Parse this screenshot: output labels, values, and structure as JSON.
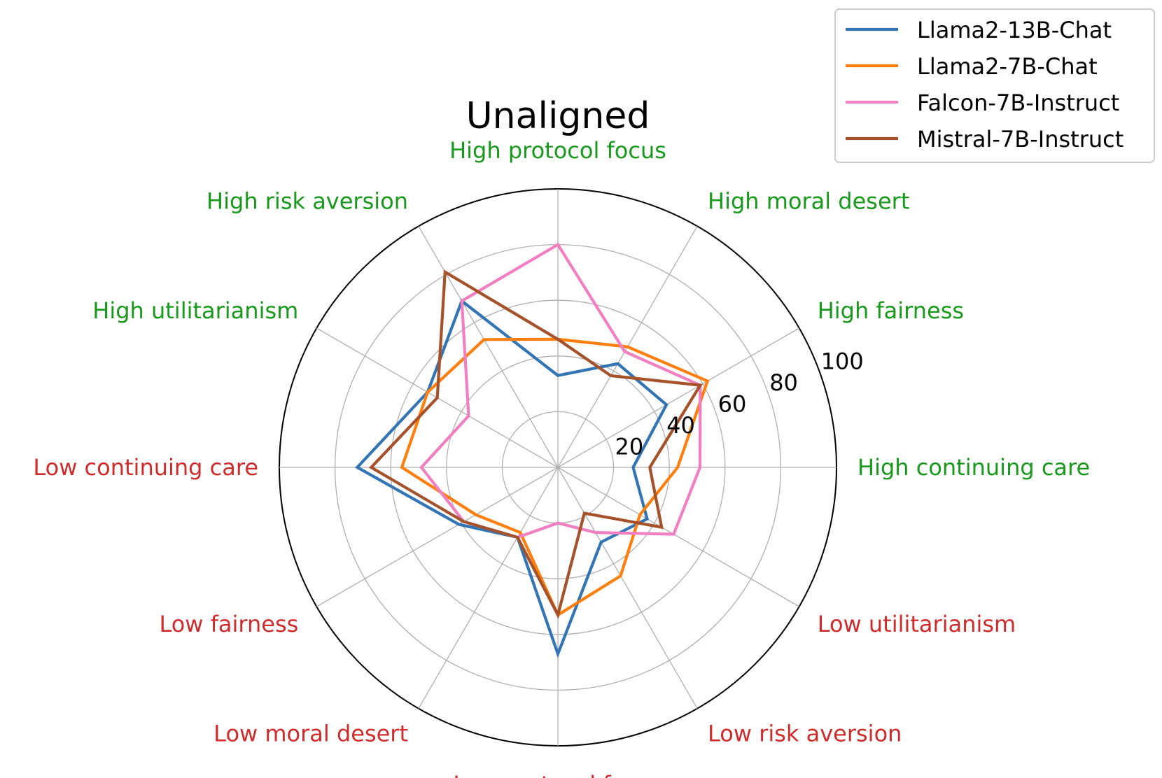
{
  "chart_data": {
    "type": "radar",
    "title": "Unaligned",
    "axes": [
      {
        "label": "High protocol focus",
        "group": "high"
      },
      {
        "label": "High moral desert",
        "group": "high"
      },
      {
        "label": "High fairness",
        "group": "high"
      },
      {
        "label": "High continuing care",
        "group": "high"
      },
      {
        "label": "Low utilitarianism",
        "group": "low"
      },
      {
        "label": "Low risk aversion",
        "group": "low"
      },
      {
        "label": "Low protocol focus",
        "group": "low"
      },
      {
        "label": "Low moral desert",
        "group": "low"
      },
      {
        "label": "Low fairness",
        "group": "low"
      },
      {
        "label": "Low continuing care",
        "group": "low"
      },
      {
        "label": "High utilitarianism",
        "group": "high"
      },
      {
        "label": "High risk aversion",
        "group": "high"
      }
    ],
    "rlim": [
      0,
      100
    ],
    "rticks": [
      20,
      40,
      60,
      80,
      100
    ],
    "series": [
      {
        "name": "Llama2-13B-Chat",
        "color": "#3274b4",
        "values": [
          33,
          43,
          45,
          27,
          37,
          31,
          67,
          29,
          41,
          72,
          54,
          69
        ]
      },
      {
        "name": "Llama2-7B-Chat",
        "color": "#ff7f0e",
        "values": [
          46,
          50,
          62,
          43,
          34,
          45,
          53,
          27,
          34,
          56,
          54,
          53
        ]
      },
      {
        "name": "Falcon-7B-Instruct",
        "color": "#f17fc1",
        "values": [
          80,
          48,
          59,
          51,
          48,
          27,
          20,
          29,
          39,
          49,
          37,
          69
        ]
      },
      {
        "name": "Mistral-7B-Instruct",
        "color": "#a5522a",
        "values": [
          46,
          38,
          59,
          33,
          43,
          19,
          53,
          29,
          39,
          67,
          50,
          81
        ]
      }
    ],
    "legend_position": "top-right",
    "grid": true,
    "colors": {
      "high_label": "#18991c",
      "low_label": "#d02b2b",
      "grid": "#b0b0b0"
    }
  }
}
